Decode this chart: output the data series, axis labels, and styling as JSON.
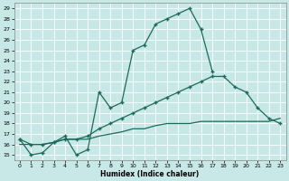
{
  "title": "",
  "xlabel": "Humidex (Indice chaleur)",
  "bg_color": "#c8e8e8",
  "line_color": "#1a6b5a",
  "grid_color": "#ffffff",
  "xlim": [
    -0.5,
    23.5
  ],
  "ylim": [
    14.5,
    29.5
  ],
  "xticks": [
    0,
    1,
    2,
    3,
    4,
    5,
    6,
    7,
    8,
    9,
    10,
    11,
    12,
    13,
    14,
    15,
    16,
    17,
    18,
    19,
    20,
    21,
    22,
    23
  ],
  "yticks": [
    15,
    16,
    17,
    18,
    19,
    20,
    21,
    22,
    23,
    24,
    25,
    26,
    27,
    28,
    29
  ],
  "curve1_x": [
    0,
    1,
    2,
    3,
    4,
    5,
    6,
    7,
    8,
    9,
    10,
    11,
    12,
    13,
    14,
    15,
    16,
    17
  ],
  "curve1_y": [
    16.5,
    15.0,
    15.2,
    16.2,
    16.8,
    15.0,
    15.5,
    21.0,
    19.5,
    20.0,
    25.0,
    25.5,
    27.5,
    28.0,
    28.5,
    29.0,
    27.0,
    23.0
  ],
  "curve2_x": [
    0,
    1,
    2,
    3,
    4,
    5,
    6,
    7,
    8,
    9,
    10,
    11,
    12,
    13,
    14,
    15,
    16,
    17,
    18,
    19,
    20,
    21,
    22,
    23
  ],
  "curve2_y": [
    16.5,
    16.0,
    16.0,
    16.2,
    16.5,
    16.5,
    16.8,
    17.5,
    18.0,
    18.5,
    19.0,
    19.5,
    20.0,
    20.5,
    21.0,
    21.5,
    22.0,
    22.5,
    22.5,
    21.5,
    21.0,
    19.5,
    18.5,
    18.0
  ],
  "curve3_x": [
    0,
    1,
    2,
    3,
    4,
    5,
    6,
    7,
    8,
    9,
    10,
    11,
    12,
    13,
    14,
    15,
    16,
    17,
    18,
    19,
    20,
    21,
    22,
    23
  ],
  "curve3_y": [
    16.0,
    16.0,
    16.0,
    16.2,
    16.5,
    16.5,
    16.5,
    16.8,
    17.0,
    17.2,
    17.5,
    17.5,
    17.8,
    18.0,
    18.0,
    18.0,
    18.2,
    18.2,
    18.2,
    18.2,
    18.2,
    18.2,
    18.2,
    18.5
  ]
}
